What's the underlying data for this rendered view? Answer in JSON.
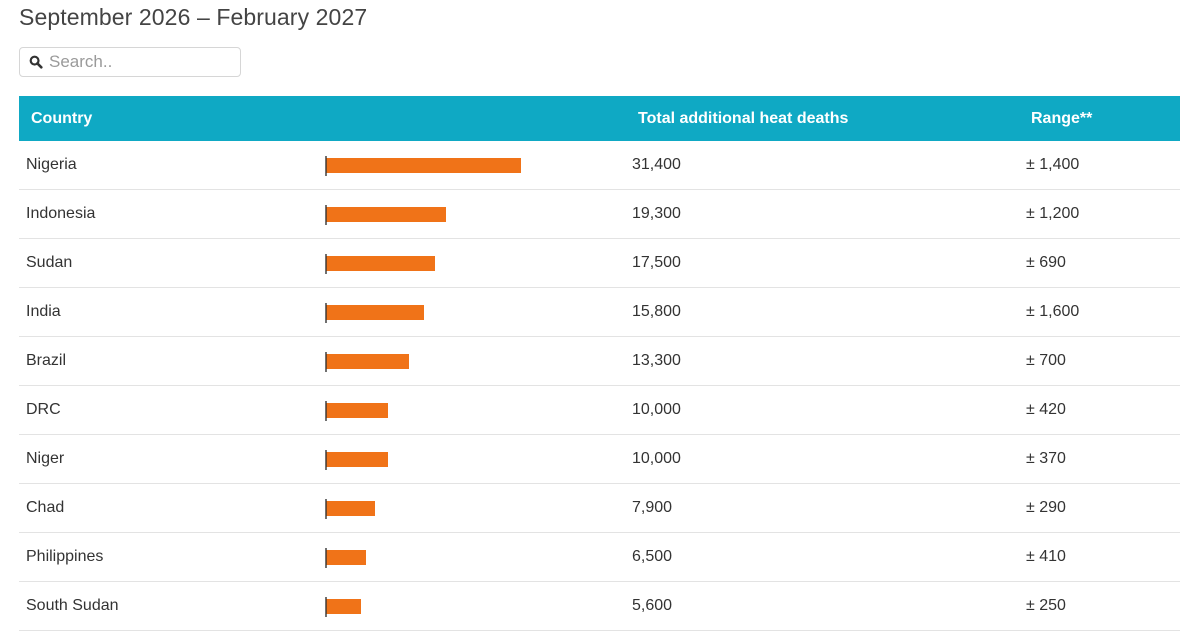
{
  "header": {
    "title": "September 2026 – February 2027"
  },
  "search": {
    "placeholder": "Search.."
  },
  "colors": {
    "header_bg": "#0fa9c4",
    "bar": "#f07318",
    "axis": "#333333"
  },
  "table": {
    "columns": [
      "Country",
      "Total additional heat deaths",
      "Range**"
    ]
  },
  "chart_data": {
    "type": "table",
    "columns": [
      "Country",
      "Total additional heat deaths",
      "Range**"
    ],
    "bar_color": "#f07318",
    "rows": [
      {
        "country": "Nigeria",
        "total": 31400,
        "total_label": "31,400",
        "range": "± 1,400"
      },
      {
        "country": "Indonesia",
        "total": 19300,
        "total_label": "19,300",
        "range": "± 1,200"
      },
      {
        "country": "Sudan",
        "total": 17500,
        "total_label": "17,500",
        "range": "± 690"
      },
      {
        "country": "India",
        "total": 15800,
        "total_label": "15,800",
        "range": "± 1,600"
      },
      {
        "country": "Brazil",
        "total": 13300,
        "total_label": "13,300",
        "range": "± 700"
      },
      {
        "country": "DRC",
        "total": 10000,
        "total_label": "10,000",
        "range": "± 420"
      },
      {
        "country": "Niger",
        "total": 10000,
        "total_label": "10,000",
        "range": "± 370"
      },
      {
        "country": "Chad",
        "total": 7900,
        "total_label": "7,900",
        "range": "± 290"
      },
      {
        "country": "Philippines",
        "total": 6500,
        "total_label": "6,500",
        "range": "± 410"
      },
      {
        "country": "South Sudan",
        "total": 5600,
        "total_label": "5,600",
        "range": "± 250"
      }
    ]
  }
}
